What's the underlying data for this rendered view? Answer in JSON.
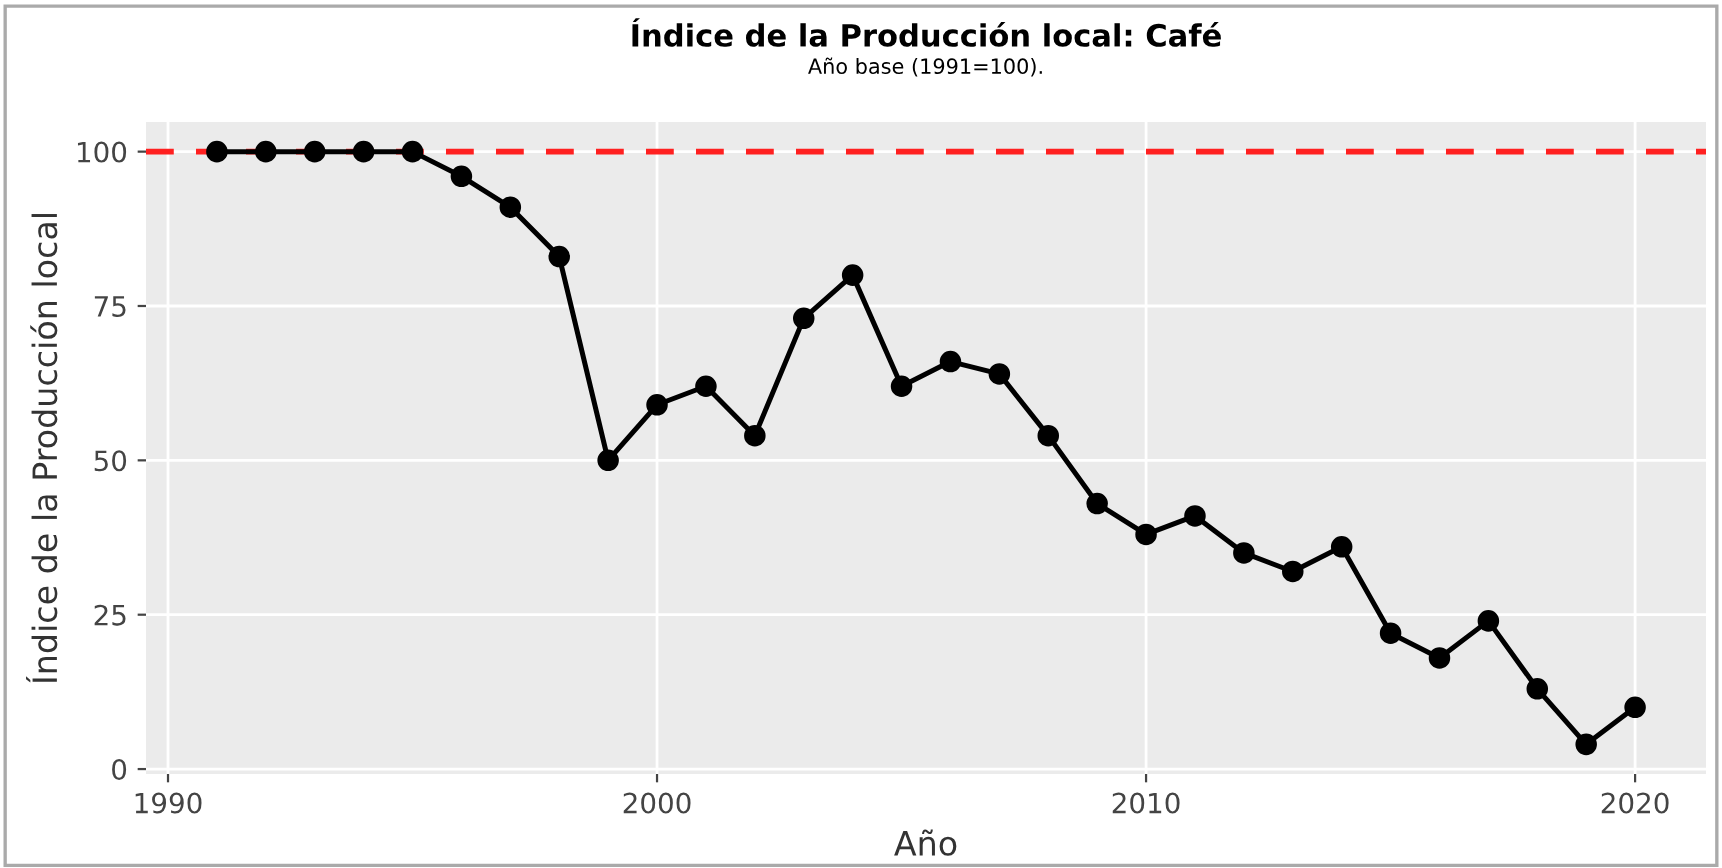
{
  "chart_data": {
    "type": "line",
    "title": "Índice de la Producción local: Café",
    "subtitle": "Año base (1991=100).",
    "xlabel": "Año",
    "ylabel": "Índice de la Producción local",
    "x": [
      1991,
      1992,
      1993,
      1994,
      1995,
      1996,
      1997,
      1998,
      1999,
      2000,
      2001,
      2002,
      2003,
      2004,
      2005,
      2006,
      2007,
      2008,
      2009,
      2010,
      2011,
      2012,
      2013,
      2014,
      2015,
      2016,
      2017,
      2018,
      2019,
      2020
    ],
    "series": [
      {
        "color": "#000000",
        "values": [
          100,
          100,
          100,
          100,
          100,
          96,
          91,
          83,
          50,
          59,
          62,
          54,
          73,
          80,
          62,
          66,
          64,
          54,
          43,
          38,
          41,
          35,
          32,
          36,
          22,
          18,
          24,
          13,
          4,
          10
        ]
      }
    ],
    "xlim": [
      1989.55,
      2021.45
    ],
    "ylim": [
      -0.8,
      104.8
    ],
    "xticks": [
      1990,
      2000,
      2010,
      2020
    ],
    "yticks": [
      0,
      25,
      50,
      75,
      100
    ],
    "ref_lines": [
      {
        "axis": "y",
        "value": 100,
        "color": "#ff2020",
        "line_style": "dashed"
      }
    ],
    "grid": true,
    "marker": "circle",
    "line_style": "solid"
  }
}
